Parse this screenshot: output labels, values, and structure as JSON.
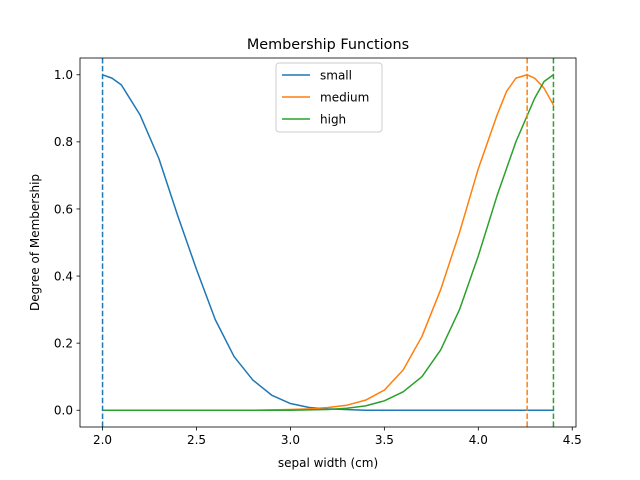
{
  "chart_data": {
    "type": "line",
    "title": "Membership Functions",
    "xlabel": "sepal width (cm)",
    "ylabel": "Degree of Membership",
    "xlim": [
      1.88,
      4.52
    ],
    "ylim": [
      -0.05,
      1.05
    ],
    "x_ticks": [
      2.0,
      2.5,
      3.0,
      3.5,
      4.0,
      4.5
    ],
    "y_ticks": [
      0.0,
      0.2,
      0.4,
      0.6,
      0.8,
      1.0
    ],
    "x_tick_labels": [
      "2.0",
      "2.5",
      "3.0",
      "3.5",
      "4.0",
      "4.5"
    ],
    "y_tick_labels": [
      "0.0",
      "0.2",
      "0.4",
      "0.6",
      "0.8",
      "1.0"
    ],
    "grid": false,
    "legend_position": "top-center",
    "series": [
      {
        "name": "small",
        "color": "#1f77b4",
        "x": [
          2.0,
          2.05,
          2.1,
          2.2,
          2.3,
          2.4,
          2.5,
          2.6,
          2.7,
          2.8,
          2.9,
          3.0,
          3.1,
          3.2,
          3.4,
          3.6,
          3.8,
          4.0,
          4.2,
          4.4
        ],
        "y": [
          1.0,
          0.99,
          0.97,
          0.88,
          0.75,
          0.58,
          0.42,
          0.27,
          0.16,
          0.09,
          0.045,
          0.02,
          0.008,
          0.004,
          0.0,
          0.0,
          0.0,
          0.0,
          0.0,
          0.0
        ]
      },
      {
        "name": "medium",
        "color": "#ff7f0e",
        "x": [
          2.0,
          2.5,
          2.8,
          3.0,
          3.1,
          3.2,
          3.3,
          3.4,
          3.5,
          3.6,
          3.7,
          3.8,
          3.9,
          4.0,
          4.1,
          4.15,
          4.2,
          4.26,
          4.3,
          4.35,
          4.4
        ],
        "y": [
          0.0,
          0.0,
          0.0,
          0.002,
          0.004,
          0.008,
          0.015,
          0.03,
          0.06,
          0.12,
          0.22,
          0.36,
          0.53,
          0.72,
          0.88,
          0.95,
          0.99,
          1.0,
          0.99,
          0.96,
          0.91
        ]
      },
      {
        "name": "high",
        "color": "#2ca02c",
        "x": [
          2.0,
          2.5,
          3.0,
          3.2,
          3.3,
          3.4,
          3.5,
          3.6,
          3.7,
          3.8,
          3.9,
          4.0,
          4.1,
          4.2,
          4.3,
          4.35,
          4.4
        ],
        "y": [
          0.0,
          0.0,
          0.0,
          0.002,
          0.006,
          0.013,
          0.028,
          0.055,
          0.1,
          0.18,
          0.3,
          0.46,
          0.64,
          0.8,
          0.93,
          0.98,
          1.0
        ]
      }
    ],
    "vlines": [
      {
        "x": 2.0,
        "color": "#1f77b4",
        "style": "dashed"
      },
      {
        "x": 4.26,
        "color": "#ff7f0e",
        "style": "dashed"
      },
      {
        "x": 4.4,
        "color": "#2ca02c",
        "style": "dashed"
      }
    ]
  }
}
